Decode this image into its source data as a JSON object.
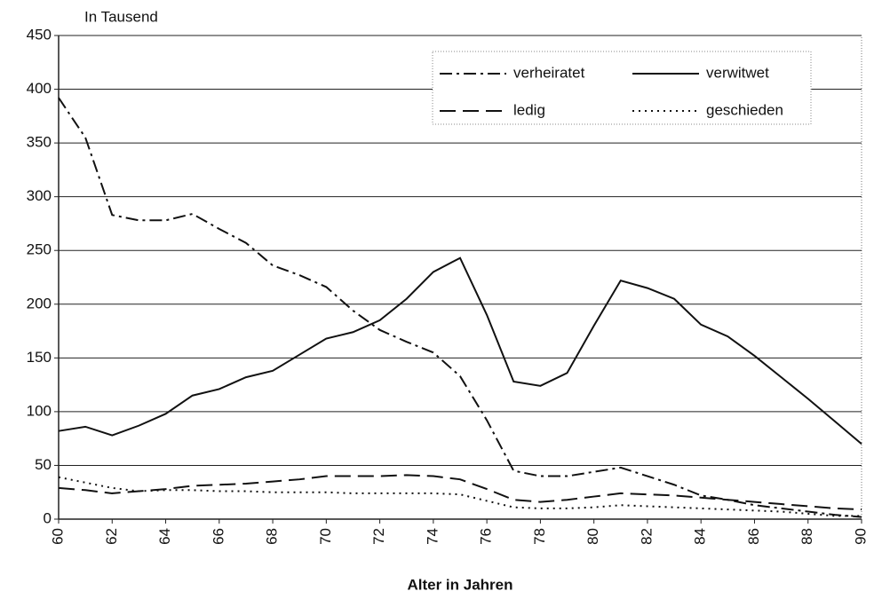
{
  "chart_data": {
    "type": "line",
    "y_unit_label": "In Tausend",
    "x_label": "Alter in Jahren",
    "x": [
      60,
      61,
      62,
      63,
      64,
      65,
      66,
      67,
      68,
      69,
      70,
      71,
      72,
      73,
      74,
      75,
      76,
      77,
      78,
      79,
      80,
      81,
      82,
      83,
      84,
      85,
      86,
      87,
      88,
      89,
      90
    ],
    "xlim": [
      60,
      90
    ],
    "xticks": [
      60,
      62,
      64,
      66,
      68,
      70,
      72,
      74,
      76,
      78,
      80,
      82,
      84,
      86,
      88,
      90
    ],
    "ylim": [
      0,
      450
    ],
    "yticks": [
      0,
      50,
      100,
      150,
      200,
      250,
      300,
      350,
      400,
      450
    ],
    "grid": true,
    "legend": "upper right",
    "series": [
      {
        "name": "verheiratet",
        "color": "#111111",
        "line_style": "dashdot",
        "values": [
          392,
          355,
          283,
          278,
          278,
          284,
          270,
          257,
          236,
          227,
          216,
          194,
          176,
          165,
          155,
          133,
          92,
          45,
          40,
          40,
          44,
          48,
          40,
          32,
          22,
          18,
          13,
          10,
          7,
          4,
          2
        ]
      },
      {
        "name": "verwitwet",
        "color": "#111111",
        "line_style": "solid",
        "values": [
          82,
          86,
          78,
          87,
          98,
          115,
          121,
          132,
          138,
          153,
          168,
          174,
          185,
          205,
          230,
          243,
          190,
          128,
          124,
          136,
          180,
          222,
          215,
          205,
          181,
          170,
          152,
          132,
          112,
          91,
          70
        ]
      },
      {
        "name": "ledig",
        "color": "#111111",
        "line_style": "dashed",
        "values": [
          29,
          27,
          24,
          26,
          28,
          31,
          32,
          33,
          35,
          37,
          40,
          40,
          40,
          41,
          40,
          37,
          28,
          18,
          16,
          18,
          21,
          24,
          23,
          22,
          20,
          18,
          16,
          14,
          12,
          10,
          9
        ]
      },
      {
        "name": "geschieden",
        "color": "#111111",
        "line_style": "dotted",
        "values": [
          39,
          34,
          29,
          26,
          27,
          27,
          26,
          26,
          25,
          25,
          25,
          24,
          24,
          24,
          24,
          23,
          17,
          11,
          10,
          10,
          11,
          13,
          12,
          11,
          10,
          9,
          8,
          7,
          5,
          3,
          3
        ]
      }
    ]
  }
}
